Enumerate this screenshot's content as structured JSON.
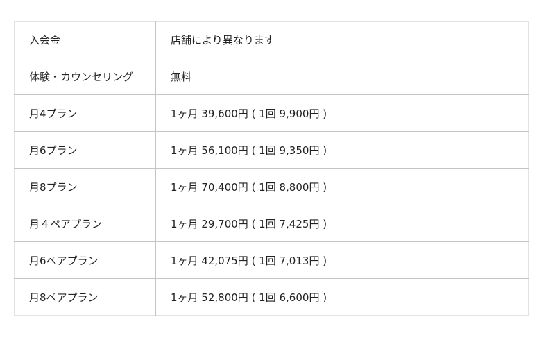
{
  "rows": [
    {
      "label": "入会金",
      "value": "店舗により異なります"
    },
    {
      "label": "体験・カウンセリング",
      "value": "無料"
    },
    {
      "label": "月4プラン",
      "value": "1ヶ月 39,600円 ( 1回 9,900円 )"
    },
    {
      "label": "月6プラン",
      "value": "1ヶ月 56,100円 ( 1回 9,350円 )"
    },
    {
      "label": "月8プラン",
      "value": "1ヶ月 70,400円 ( 1回 8,800円 )"
    },
    {
      "label": "月４ペアプラン",
      "value": "1ヶ月 29,700円 ( 1回 7,425円 )"
    },
    {
      "label": "月6ペアプラン",
      "value": "1ヶ月 42,075円 ( 1回 7,013円 )"
    },
    {
      "label": "月8ペアプラン",
      "value": "1ヶ月 52,800円 ( 1回 6,600円 )"
    }
  ]
}
